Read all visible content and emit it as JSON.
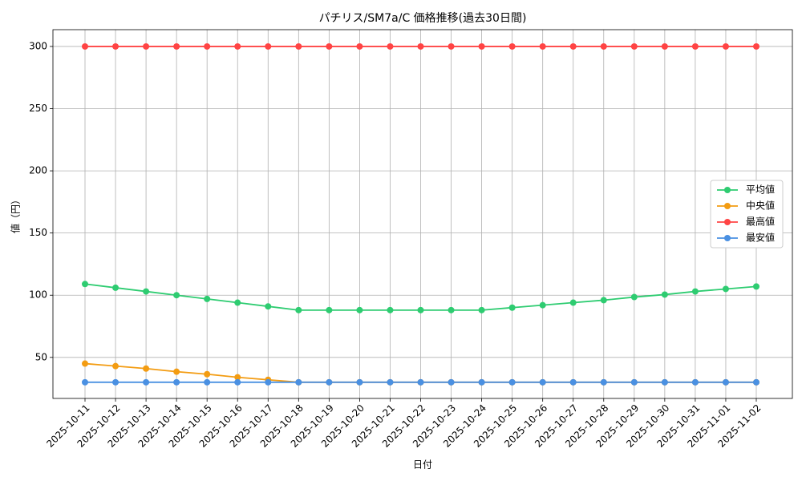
{
  "chart_data": {
    "type": "line",
    "title": "パチリス/SM7a/C 価格推移(過去30日間)",
    "xlabel": "日付",
    "ylabel": "値（円）",
    "categories": [
      "2025-10-11",
      "2025-10-12",
      "2025-10-13",
      "2025-10-14",
      "2025-10-15",
      "2025-10-16",
      "2025-10-17",
      "2025-10-18",
      "2025-10-19",
      "2025-10-20",
      "2025-10-21",
      "2025-10-22",
      "2025-10-23",
      "2025-10-24",
      "2025-10-25",
      "2025-10-26",
      "2025-10-27",
      "2025-10-28",
      "2025-10-29",
      "2025-10-30",
      "2025-10-31",
      "2025-11-01",
      "2025-11-02"
    ],
    "series": [
      {
        "name": "平均値",
        "color": "#2ecc71",
        "values": [
          109,
          106,
          103,
          100,
          97,
          94,
          91,
          88,
          88,
          88,
          88,
          88,
          88,
          88,
          90,
          92,
          94,
          96,
          98.5,
          100.5,
          103,
          105,
          107
        ]
      },
      {
        "name": "中央値",
        "color": "#f39c12",
        "values": [
          45,
          43,
          41,
          38.5,
          36.5,
          34,
          32,
          30,
          30,
          30,
          30,
          30,
          30,
          30,
          30,
          30,
          30,
          30,
          30,
          30,
          30,
          30,
          30
        ]
      },
      {
        "name": "最高値",
        "color": "#ff4444",
        "values": [
          300,
          300,
          300,
          300,
          300,
          300,
          300,
          300,
          300,
          300,
          300,
          300,
          300,
          300,
          300,
          300,
          300,
          300,
          300,
          300,
          300,
          300,
          300
        ]
      },
      {
        "name": "最安値",
        "color": "#4a90e2",
        "values": [
          30,
          30,
          30,
          30,
          30,
          30,
          30,
          30,
          30,
          30,
          30,
          30,
          30,
          30,
          30,
          30,
          30,
          30,
          30,
          30,
          30,
          30,
          30
        ]
      }
    ],
    "ylim": [
      17,
      313.5
    ],
    "yticks": [
      50,
      100,
      150,
      200,
      250,
      300
    ],
    "grid": true,
    "legend": "center right"
  }
}
